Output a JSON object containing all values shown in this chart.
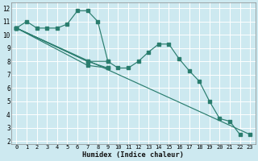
{
  "xlabel": "Humidex (Indice chaleur)",
  "bg_color": "#cde9f0",
  "grid_color": "#ffffff",
  "line_color": "#2a7d6e",
  "xlim": [
    -0.5,
    23.5
  ],
  "ylim": [
    1.8,
    12.4
  ],
  "xticks": [
    0,
    1,
    2,
    3,
    4,
    5,
    6,
    7,
    8,
    9,
    10,
    11,
    12,
    13,
    14,
    15,
    16,
    17,
    18,
    19,
    20,
    21,
    22,
    23
  ],
  "yticks": [
    2,
    3,
    4,
    5,
    6,
    7,
    8,
    9,
    10,
    11,
    12
  ],
  "curve1_x": [
    0,
    1,
    2,
    3,
    4,
    5,
    6,
    7,
    8,
    9,
    10,
    11,
    12,
    13,
    14,
    15,
    16,
    17,
    18,
    19,
    20,
    21,
    22
  ],
  "curve1_y": [
    10.5,
    11.0,
    10.5,
    10.5,
    10.5,
    10.8,
    11.8,
    11.8,
    11.0,
    8.0,
    7.5,
    7.5,
    8.0,
    8.7,
    9.3,
    9.3,
    8.2,
    7.3,
    6.5,
    5.0,
    3.7,
    3.5,
    2.5
  ],
  "line2_x": [
    0,
    23
  ],
  "line2_y": [
    10.5,
    2.5
  ],
  "line3_x": [
    0,
    7,
    9
  ],
  "line3_y": [
    10.5,
    8.0,
    7.5
  ],
  "line4_x": [
    0,
    7,
    9
  ],
  "line4_y": [
    10.5,
    7.7,
    7.5
  ],
  "line5_x": [
    0,
    7,
    9
  ],
  "line5_y": [
    10.5,
    8.0,
    8.0
  ]
}
